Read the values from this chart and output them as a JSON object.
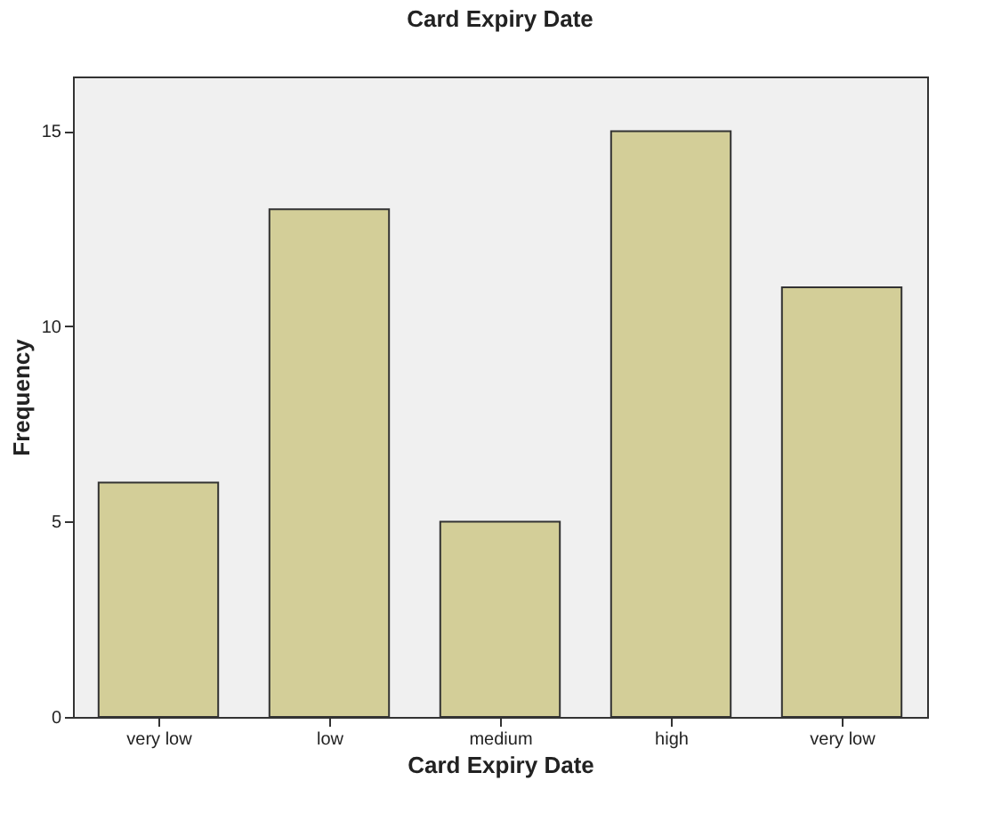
{
  "chart_data": {
    "type": "bar",
    "title": "Card Expiry Date",
    "xlabel": "Card Expiry Date",
    "ylabel": "Frequency",
    "categories": [
      "very low",
      "low",
      "medium",
      "high",
      "very low"
    ],
    "values": [
      6,
      13,
      5,
      15,
      11
    ],
    "color": "#d3ce98",
    "ylim": [
      0,
      16.4
    ],
    "yticks": [
      0,
      5,
      10,
      15
    ],
    "grid": false
  }
}
